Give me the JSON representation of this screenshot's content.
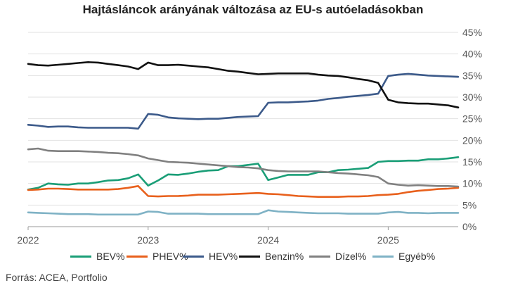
{
  "chart_data": {
    "type": "line",
    "title": "Hajtásláncok arányának változása az EU-s autóeladásokban",
    "source": "Forrás: ACEA, Portfolio",
    "ylim": [
      0,
      45
    ],
    "y_ticks": [
      "0%",
      "5%",
      "10%",
      "15%",
      "20%",
      "25%",
      "30%",
      "35%",
      "40%",
      "45%"
    ],
    "x_ticks": [
      {
        "label": "2022",
        "x": 2022
      },
      {
        "label": "2023",
        "x": 2023
      },
      {
        "label": "2024",
        "x": 2024
      },
      {
        "label": "2025",
        "x": 2025
      }
    ],
    "x_start": 2022,
    "x_step": 0.0833333,
    "series": [
      {
        "name": "BEV%",
        "color": "#1a9e77",
        "values": [
          8.6,
          9.0,
          10.0,
          9.8,
          9.7,
          10.0,
          10.0,
          10.3,
          10.7,
          10.8,
          11.2,
          12.1,
          9.5,
          10.7,
          12.1,
          12.0,
          12.3,
          12.7,
          13.0,
          13.1,
          14.0,
          14.0,
          14.3,
          14.6,
          10.8,
          11.4,
          12.0,
          12.0,
          12.0,
          12.6,
          12.6,
          13.1,
          13.2,
          13.4,
          13.6,
          15.0,
          15.2,
          15.2,
          15.3,
          15.3,
          15.6,
          15.6,
          15.8,
          16.1
        ]
      },
      {
        "name": "PHEV%",
        "color": "#e8601c",
        "values": [
          8.5,
          8.6,
          8.8,
          8.8,
          8.7,
          8.6,
          8.6,
          8.6,
          8.6,
          8.7,
          9.0,
          9.4,
          7.1,
          7.0,
          7.1,
          7.1,
          7.2,
          7.4,
          7.4,
          7.4,
          7.5,
          7.6,
          7.7,
          7.8,
          7.6,
          7.5,
          7.3,
          7.1,
          7.0,
          6.9,
          6.9,
          6.9,
          7.0,
          7.0,
          7.1,
          7.3,
          7.4,
          7.6,
          8.0,
          8.3,
          8.5,
          8.7,
          8.8,
          9.0
        ]
      },
      {
        "name": "HEV%",
        "color": "#3c5a8a",
        "values": [
          23.6,
          23.4,
          23.1,
          23.2,
          23.2,
          23.0,
          22.9,
          22.9,
          22.9,
          22.9,
          22.9,
          22.7,
          26.1,
          25.9,
          25.3,
          25.1,
          25.0,
          24.9,
          25.0,
          25.0,
          25.2,
          25.4,
          25.5,
          25.6,
          28.7,
          28.8,
          28.8,
          28.9,
          29.0,
          29.2,
          29.6,
          29.8,
          30.1,
          30.3,
          30.5,
          30.8,
          34.9,
          35.2,
          35.4,
          35.2,
          35.0,
          34.9,
          34.8,
          34.7
        ]
      },
      {
        "name": "Benzin%",
        "color": "#111111",
        "values": [
          37.7,
          37.4,
          37.3,
          37.5,
          37.7,
          37.9,
          38.1,
          38.0,
          37.7,
          37.4,
          37.1,
          36.5,
          38.0,
          37.4,
          37.4,
          37.5,
          37.3,
          37.1,
          36.9,
          36.5,
          36.1,
          35.9,
          35.6,
          35.3,
          35.4,
          35.5,
          35.5,
          35.5,
          35.5,
          35.2,
          35.0,
          34.9,
          34.6,
          34.2,
          33.9,
          33.3,
          29.4,
          28.8,
          28.6,
          28.5,
          28.5,
          28.3,
          28.1,
          27.6
        ]
      },
      {
        "name": "Dízel%",
        "color": "#808080",
        "values": [
          17.9,
          18.1,
          17.6,
          17.5,
          17.5,
          17.5,
          17.4,
          17.3,
          17.1,
          17.0,
          16.8,
          16.5,
          15.8,
          15.4,
          15.0,
          14.9,
          14.8,
          14.6,
          14.4,
          14.2,
          14.0,
          13.8,
          13.7,
          13.5,
          13.1,
          12.9,
          12.8,
          12.8,
          12.8,
          12.8,
          12.6,
          12.4,
          12.3,
          12.1,
          11.9,
          11.5,
          10.0,
          9.7,
          9.5,
          9.6,
          9.5,
          9.4,
          9.4,
          9.3
        ]
      },
      {
        "name": "Egyéb%",
        "color": "#7fb2c5",
        "values": [
          3.3,
          3.2,
          3.1,
          3.0,
          2.9,
          2.9,
          2.9,
          2.8,
          2.8,
          2.8,
          2.8,
          2.8,
          3.5,
          3.4,
          3.0,
          3.0,
          3.0,
          3.0,
          2.9,
          2.9,
          2.9,
          2.9,
          2.9,
          2.9,
          3.8,
          3.5,
          3.4,
          3.3,
          3.2,
          3.1,
          3.1,
          3.1,
          3.0,
          3.0,
          3.0,
          3.0,
          3.3,
          3.4,
          3.2,
          3.2,
          3.1,
          3.2,
          3.2,
          3.2
        ]
      }
    ]
  }
}
